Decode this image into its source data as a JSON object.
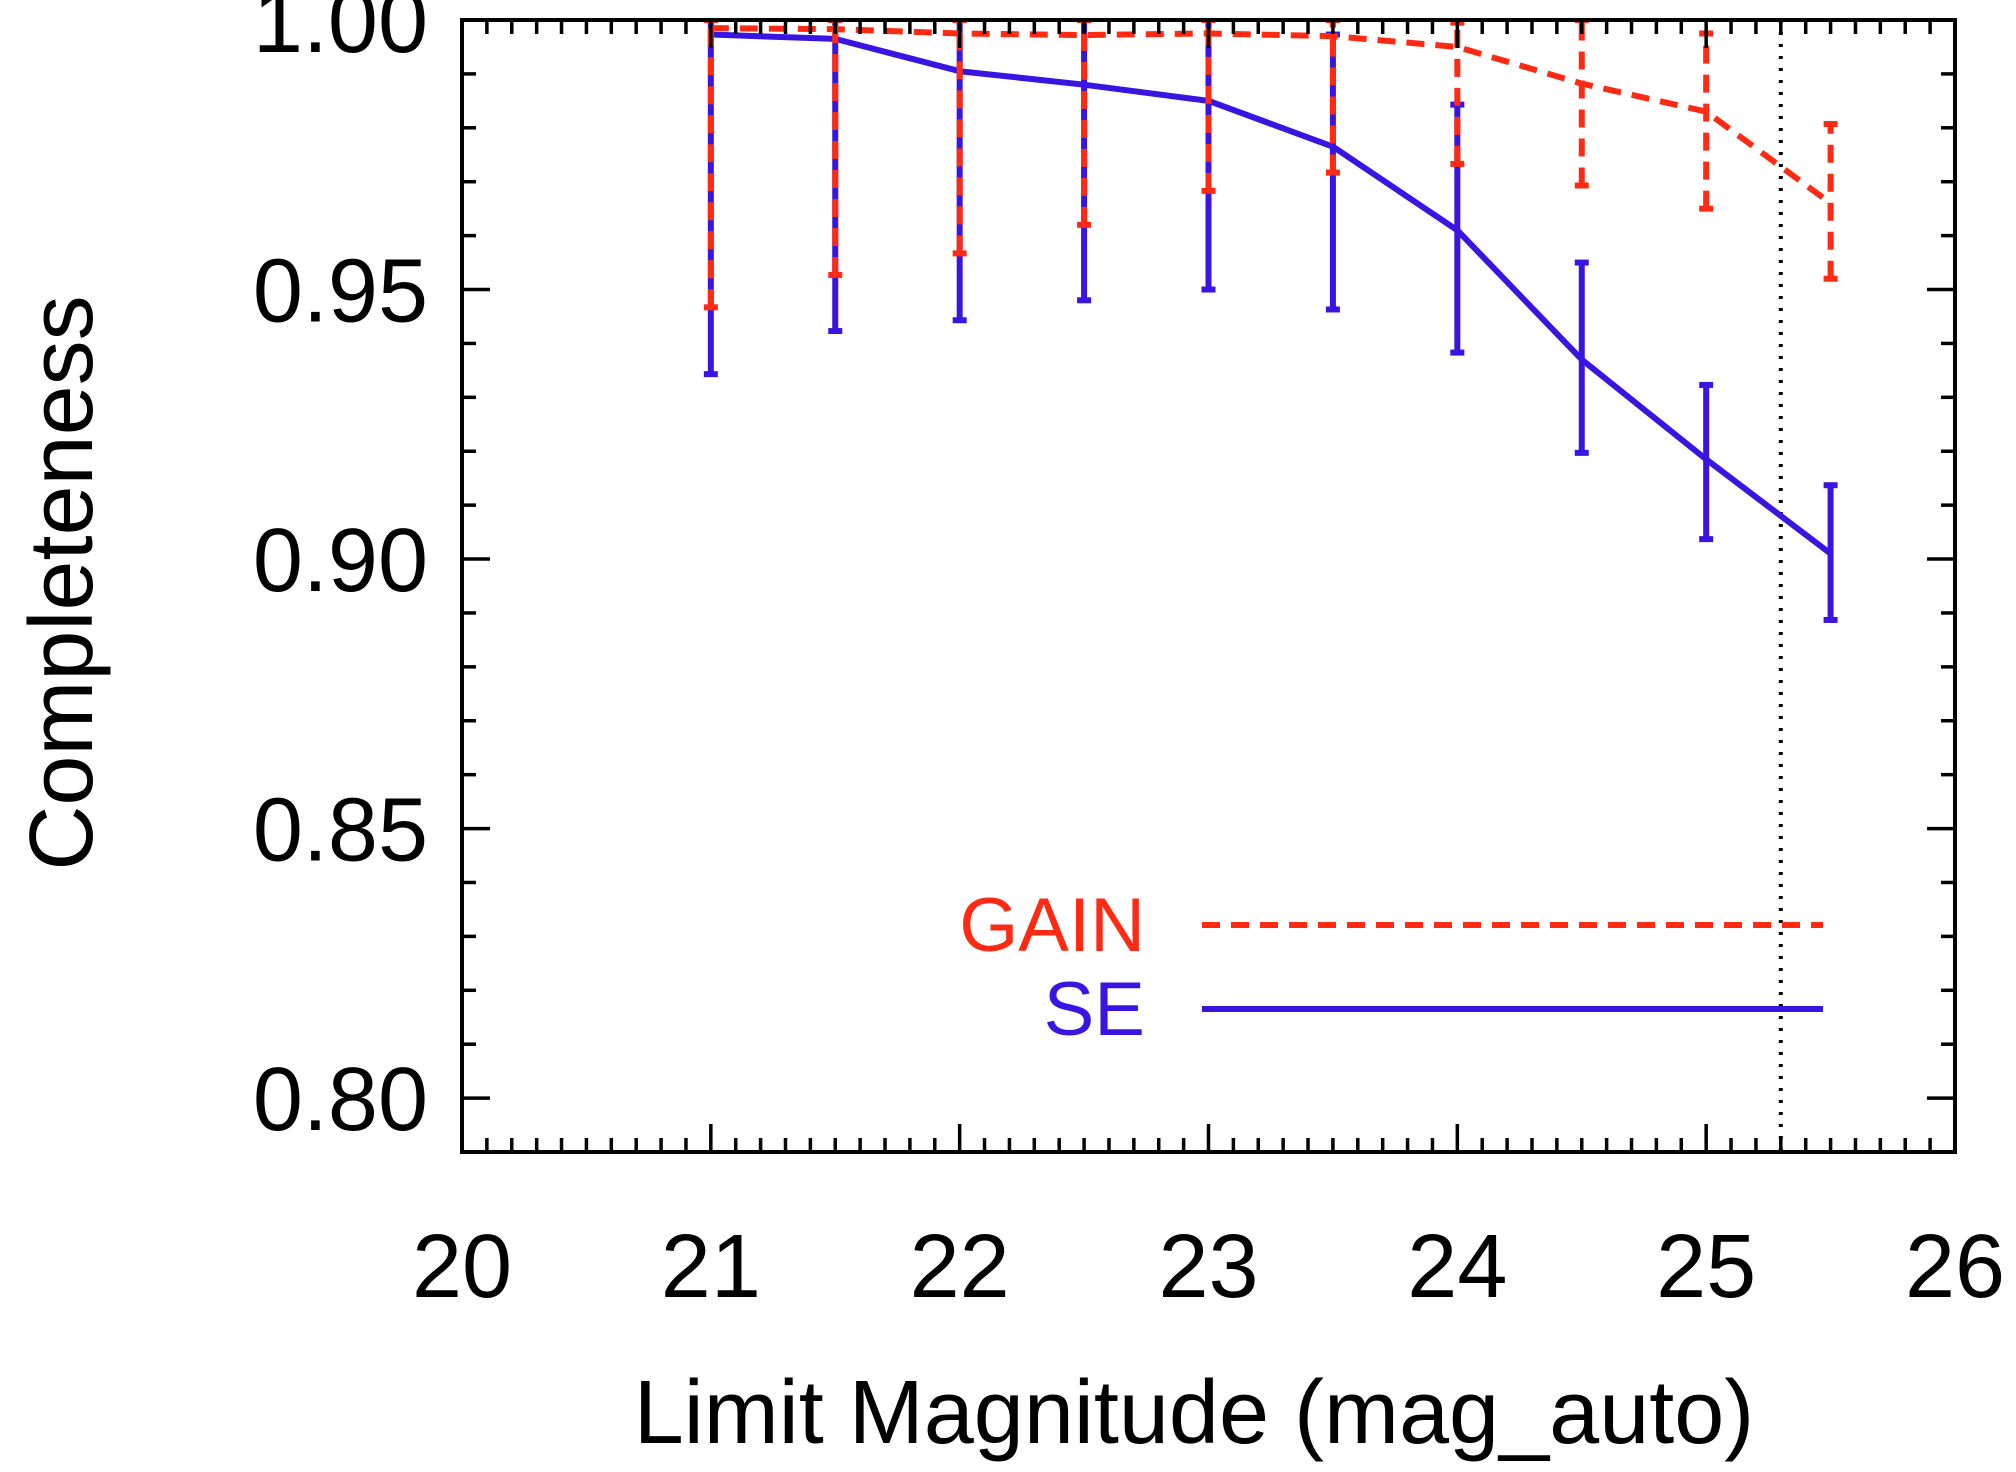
{
  "chart_data": {
    "type": "line",
    "title": "",
    "xlabel": "Limit Magnitude (mag_auto)",
    "ylabel": "Completeness",
    "xlim": [
      20,
      26
    ],
    "ylim": [
      0.79,
      1.0
    ],
    "xticks": [
      20,
      21,
      22,
      23,
      24,
      25,
      26
    ],
    "xtick_labels": [
      "20",
      "21",
      "22",
      "23",
      "24",
      "25",
      "26"
    ],
    "yticks": [
      0.8,
      0.85,
      0.9,
      0.95,
      1.0
    ],
    "ytick_labels": [
      "0.80",
      "0.85",
      "0.90",
      "0.95",
      "1.00"
    ],
    "grid": false,
    "legend_position": "bottom-right",
    "reference_line": {
      "x": 25.3,
      "style": "dotted",
      "color": "#000000"
    },
    "x": [
      21.0,
      21.5,
      22.0,
      22.5,
      23.0,
      23.5,
      24.0,
      24.5,
      25.0,
      25.5
    ],
    "series": [
      {
        "name": "GAIN",
        "color": "#ff2a14",
        "style": "dashed",
        "values": [
          0.9985,
          0.9983,
          0.9975,
          0.9972,
          0.9975,
          0.997,
          0.995,
          0.9882,
          0.983,
          0.966
        ],
        "err_low": [
          0.9467,
          0.9527,
          0.9567,
          0.962,
          0.9683,
          0.9717,
          0.9733,
          0.9693,
          0.965,
          0.952
        ],
        "err_high": [
          1.0,
          1.0,
          1.0,
          1.0,
          1.0,
          1.0,
          0.9995,
          1.0,
          0.9975,
          0.9807
        ]
      },
      {
        "name": "SE",
        "color": "#3a14e0",
        "style": "solid",
        "values": [
          0.9973,
          0.9965,
          0.9905,
          0.988,
          0.985,
          0.9765,
          0.961,
          0.937,
          0.9185,
          0.901
        ],
        "err_low": [
          0.9343,
          0.9423,
          0.9443,
          0.948,
          0.95,
          0.9463,
          0.9383,
          0.9197,
          0.9037,
          0.8887
        ],
        "err_high": [
          1.0,
          1.0,
          1.0,
          1.0,
          1.0,
          0.9973,
          0.9843,
          0.955,
          0.9323,
          0.9137
        ]
      }
    ]
  }
}
